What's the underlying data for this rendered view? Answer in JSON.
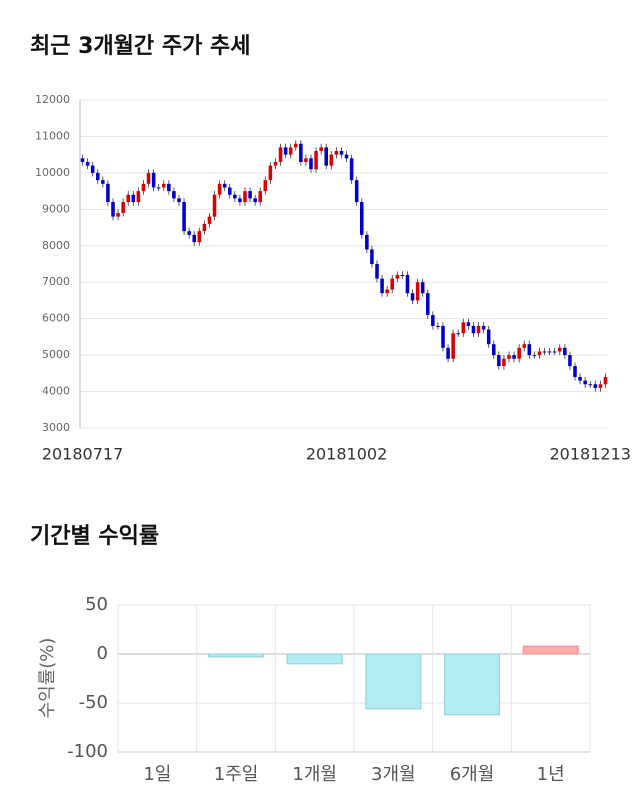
{
  "chart_data": [
    {
      "type": "candlestick",
      "title": "최근 3개월간 주가 추세",
      "categories": [
        "20180717",
        null,
        null,
        null,
        null,
        null,
        null,
        null,
        null,
        null,
        null,
        null,
        null,
        null,
        null,
        null,
        null,
        null,
        null,
        null,
        null,
        null,
        null,
        null,
        null,
        null,
        null,
        null,
        null,
        null,
        null,
        null,
        null,
        null,
        null,
        null,
        null,
        null,
        null,
        null,
        null,
        null,
        null,
        null,
        null,
        null,
        null,
        null,
        null,
        null,
        null,
        null,
        "20181002",
        null,
        null,
        null,
        null,
        null,
        null,
        null,
        null,
        null,
        null,
        null,
        null,
        null,
        null,
        null,
        null,
        null,
        null,
        null,
        null,
        null,
        null,
        null,
        null,
        null,
        null,
        null,
        null,
        null,
        null,
        null,
        null,
        null,
        null,
        null,
        null,
        null,
        null,
        null,
        null,
        null,
        null,
        null,
        null,
        null,
        null,
        null,
        "20181213",
        null,
        null,
        null
      ],
      "open": [
        10400,
        10300,
        10200,
        10000,
        9800,
        9700,
        9200,
        8800,
        8900,
        9200,
        9400,
        9200,
        9500,
        9700,
        10000,
        9600,
        9600,
        9700,
        9500,
        9300,
        9200,
        8400,
        8300,
        8100,
        8400,
        8600,
        8800,
        9400,
        9700,
        9600,
        9400,
        9300,
        9200,
        9500,
        9300,
        9200,
        9500,
        9800,
        10200,
        10300,
        10700,
        10500,
        10700,
        10800,
        10300,
        10400,
        10100,
        10600,
        10700,
        10200,
        10500,
        10600,
        10500,
        10400,
        9800,
        9200,
        8300,
        7900,
        7500,
        7100,
        6700,
        6800,
        7100,
        7200,
        7200,
        6700,
        6500,
        7000,
        6700,
        6100,
        5800,
        5800,
        5200,
        4900,
        5600,
        5600,
        5900,
        5800,
        5600,
        5800,
        5700,
        5300,
        5000,
        4700,
        4900,
        5000,
        4900,
        5200,
        5300,
        5000,
        5000,
        5100,
        5100,
        5100,
        5100,
        5200,
        5000,
        4700,
        4400,
        4300,
        4200,
        4200,
        4100,
        4200
      ],
      "high": [
        10500,
        10400,
        10300,
        10100,
        9900,
        9800,
        9300,
        9000,
        9300,
        9500,
        9500,
        9600,
        9800,
        10100,
        10100,
        9700,
        9800,
        9800,
        9600,
        9400,
        9300,
        8500,
        8400,
        8500,
        8700,
        8900,
        9500,
        9800,
        9800,
        9700,
        9500,
        9400,
        9600,
        9600,
        9400,
        9600,
        9900,
        10300,
        10400,
        10800,
        10800,
        10800,
        10900,
        10900,
        10500,
        10500,
        10700,
        10800,
        10800,
        10600,
        10700,
        10700,
        10600,
        10500,
        9900,
        9300,
        8400,
        8000,
        7600,
        7200,
        6900,
        7200,
        7300,
        7300,
        7300,
        6800,
        7100,
        7100,
        6800,
        6200,
        5900,
        5900,
        5300,
        5700,
        5700,
        6000,
        6000,
        5900,
        5900,
        5900,
        5800,
        5400,
        5100,
        5000,
        5100,
        5100,
        5300,
        5400,
        5400,
        5100,
        5200,
        5200,
        5200,
        5200,
        5300,
        5300,
        5100,
        4800,
        4500,
        4400,
        4300,
        4300,
        4300,
        4500
      ],
      "low": [
        10200,
        10100,
        9900,
        9700,
        9600,
        9100,
        8700,
        8700,
        8800,
        9100,
        9100,
        9100,
        9400,
        9600,
        9500,
        9500,
        9500,
        9400,
        9200,
        9100,
        8300,
        8200,
        8000,
        8000,
        8300,
        8500,
        8700,
        9300,
        9500,
        9300,
        9200,
        9100,
        9100,
        9200,
        9100,
        9100,
        9400,
        9700,
        10100,
        10200,
        10400,
        10400,
        10600,
        10200,
        10200,
        10000,
        10000,
        10500,
        10100,
        10100,
        10400,
        10400,
        10300,
        9700,
        9100,
        8200,
        7800,
        7400,
        7000,
        6600,
        6600,
        6700,
        7000,
        7100,
        6600,
        6400,
        6400,
        6600,
        6000,
        5700,
        5700,
        5100,
        4800,
        4800,
        5500,
        5500,
        5700,
        5500,
        5500,
        5600,
        5200,
        4900,
        4600,
        4600,
        4800,
        4800,
        4800,
        5100,
        4900,
        4900,
        4900,
        5000,
        5000,
        5000,
        5000,
        4900,
        4600,
        4300,
        4200,
        4100,
        4100,
        4000,
        4000,
        4100
      ],
      "close": [
        10300,
        10200,
        10000,
        9800,
        9700,
        9200,
        8800,
        8900,
        9200,
        9400,
        9200,
        9500,
        9700,
        10000,
        9600,
        9600,
        9700,
        9500,
        9300,
        9200,
        8400,
        8300,
        8100,
        8400,
        8600,
        8800,
        9400,
        9700,
        9600,
        9400,
        9300,
        9200,
        9500,
        9300,
        9200,
        9500,
        9800,
        10200,
        10300,
        10700,
        10500,
        10700,
        10800,
        10300,
        10400,
        10100,
        10600,
        10700,
        10200,
        10500,
        10600,
        10500,
        10400,
        9800,
        9200,
        8300,
        7900,
        7500,
        7100,
        6700,
        6800,
        7100,
        7200,
        7200,
        6700,
        6500,
        7000,
        6700,
        6100,
        5800,
        5800,
        5200,
        4900,
        5600,
        5600,
        5900,
        5800,
        5600,
        5800,
        5700,
        5300,
        5000,
        4700,
        4900,
        5000,
        4900,
        5200,
        5300,
        5000,
        5000,
        5100,
        5100,
        5100,
        5100,
        5200,
        5000,
        4700,
        4400,
        4300,
        4200,
        4200,
        4100,
        4200,
        4400
      ],
      "up_color": "#dd0000",
      "down_color": "#0000cc",
      "ylim": [
        3000,
        12000
      ],
      "yticks": [
        3000,
        4000,
        5000,
        6000,
        7000,
        8000,
        9000,
        10000,
        11000,
        12000
      ],
      "grid": true
    },
    {
      "type": "bar",
      "title": "기간별 수익률",
      "y_label": "수익률(%)",
      "categories": [
        "1일",
        "1주일",
        "1개월",
        "3개월",
        "6개월",
        "1년"
      ],
      "values": [
        0,
        -3,
        -10,
        -56,
        -62,
        8
      ],
      "positive_color": "#ffaaaa",
      "negative_color": "#b3ebf2",
      "ylim": [
        -100,
        50
      ],
      "yticks": [
        -100,
        -50,
        0,
        50
      ],
      "grid": true
    }
  ]
}
